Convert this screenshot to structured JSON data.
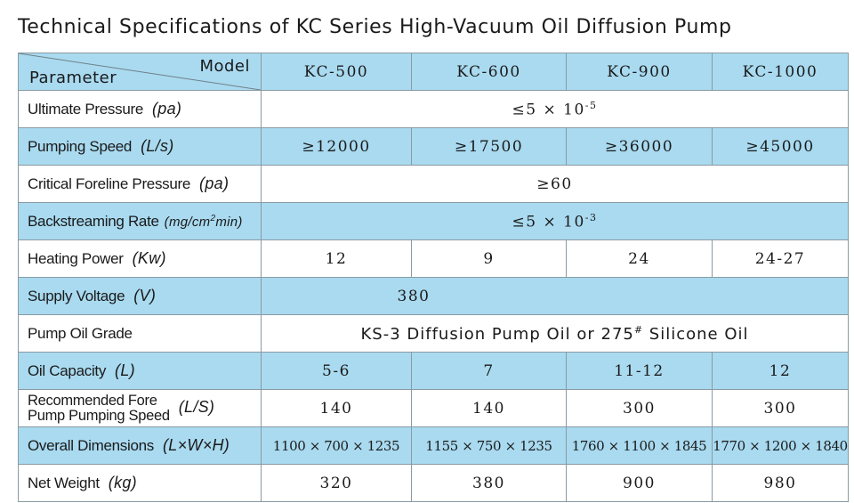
{
  "title": "Technical Specifications of KC Series High-Vacuum Oil Diffusion Pump",
  "header": {
    "model_label": "Model",
    "parameter_label": "Parameter",
    "models": [
      "KC-500",
      "KC-600",
      "KC-900",
      "KC-1000"
    ]
  },
  "rows": {
    "ultimate_pressure": {
      "label": "Ultimate Pressure",
      "unit": "(pa)",
      "value_base": "≤5 × 10",
      "value_exp": "-5"
    },
    "pumping_speed": {
      "label": "Pumping Speed",
      "unit": "(L/s)",
      "values": [
        "≥12000",
        "≥17500",
        "≥36000",
        "≥45000"
      ]
    },
    "critical_foreline": {
      "label": "Critical Foreline Pressure",
      "unit": "(pa)",
      "value": "≥60"
    },
    "backstreaming": {
      "label": "Backstreaming Rate",
      "unit_pre": "(mg/cm",
      "unit_sup": "2",
      "unit_post": "min)",
      "value_base": "≤5 × 10",
      "value_exp": "-3"
    },
    "heating_power": {
      "label": "Heating Power",
      "unit": "(Kw)",
      "values": [
        "12",
        "9",
        "24",
        "24-27"
      ]
    },
    "supply_voltage": {
      "label": "Supply Voltage",
      "unit": "(V)",
      "value": "380"
    },
    "pump_oil": {
      "label": "Pump Oil Grade",
      "value_pre": "KS-3 Diffusion Pump Oil or 275",
      "value_sup": "#",
      "value_post": " Silicone Oil"
    },
    "oil_capacity": {
      "label": "Oil Capacity",
      "unit": "(L)",
      "values": [
        "5-6",
        "7",
        "11-12",
        "12"
      ]
    },
    "fore_pump": {
      "label_line1": "Recommended Fore",
      "label_line2": "Pump Pumping Speed",
      "unit": "(L/S)",
      "values": [
        "140",
        "140",
        "300",
        "300"
      ]
    },
    "dimensions": {
      "label": "Overall Dimensions",
      "unit": "(L×W×H)",
      "values": [
        "1100 × 700 × 1235",
        "1155 × 750 × 1235",
        "1760 × 1100 × 1845",
        "1770 × 1200 × 1840"
      ]
    },
    "net_weight": {
      "label": "Net Weight",
      "unit": "(kg)",
      "values": [
        "320",
        "380",
        "900",
        "980"
      ]
    }
  }
}
